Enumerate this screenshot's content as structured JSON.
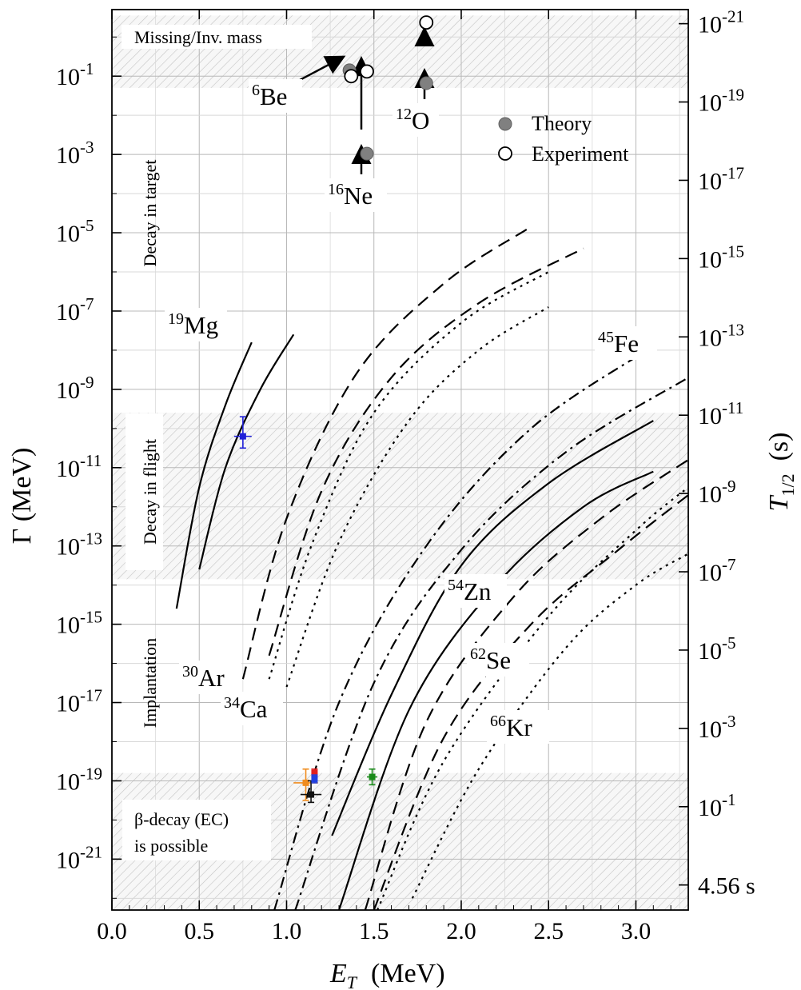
{
  "chart_data": {
    "type": "line",
    "xlabel": "E_T  (MeV)",
    "xlabel_main": "E",
    "xlabel_sub": "T",
    "xlabel_unit": "(MeV)",
    "ylabel": "Γ (MeV)",
    "y2label": "T_1/2  (s)",
    "y2label_main": "T",
    "y2label_sub": "1/2",
    "y2label_unit": "(s)",
    "xlim": [
      0.0,
      3.3
    ],
    "ylim_log10": [
      -22.3,
      0.7
    ],
    "yscale": "log",
    "grid": true,
    "x_ticks": [
      {
        "v": 0.0,
        "label": "0.0"
      },
      {
        "v": 0.5,
        "label": "0.5"
      },
      {
        "v": 1.0,
        "label": "1.0"
      },
      {
        "v": 1.5,
        "label": "1.5"
      },
      {
        "v": 2.0,
        "label": "2.0"
      },
      {
        "v": 2.5,
        "label": "2.5"
      },
      {
        "v": 3.0,
        "label": "3.0"
      }
    ],
    "y_ticks": [
      {
        "exp": -1,
        "base": "10",
        "sup": "-1"
      },
      {
        "exp": -3,
        "base": "10",
        "sup": "-3"
      },
      {
        "exp": -5,
        "base": "10",
        "sup": "-5"
      },
      {
        "exp": -7,
        "base": "10",
        "sup": "-7"
      },
      {
        "exp": -9,
        "base": "10",
        "sup": "-9"
      },
      {
        "exp": -11,
        "base": "10",
        "sup": "-11"
      },
      {
        "exp": -13,
        "base": "10",
        "sup": "-13"
      },
      {
        "exp": -15,
        "base": "10",
        "sup": "-15"
      },
      {
        "exp": -17,
        "base": "10",
        "sup": "-17"
      },
      {
        "exp": -19,
        "base": "10",
        "sup": "-19"
      },
      {
        "exp": -21,
        "base": "10",
        "sup": "-21"
      }
    ],
    "y2_ticks": [
      {
        "pos": 0.34,
        "base": "10",
        "sup": "-21"
      },
      {
        "pos": -1.66,
        "base": "10",
        "sup": "-19"
      },
      {
        "pos": -3.66,
        "base": "10",
        "sup": "-17"
      },
      {
        "pos": -5.66,
        "base": "10",
        "sup": "-15"
      },
      {
        "pos": -7.66,
        "base": "10",
        "sup": "-13"
      },
      {
        "pos": -9.66,
        "base": "10",
        "sup": "-11"
      },
      {
        "pos": -11.66,
        "base": "10",
        "sup": "-9"
      },
      {
        "pos": -13.66,
        "base": "10",
        "sup": "-7"
      },
      {
        "pos": -15.66,
        "base": "10",
        "sup": "-5"
      },
      {
        "pos": -17.66,
        "base": "10",
        "sup": "-3"
      },
      {
        "pos": -19.66,
        "base": "10",
        "sup": "-1"
      },
      {
        "pos": -21.66,
        "base": "4.56 s",
        "sup": ""
      }
    ],
    "regions": [
      {
        "name": "missing-inv-mass",
        "ylog": [
          -1.3,
          0.55
        ],
        "label": "Missing/Inv. mass"
      },
      {
        "name": "decay-in-flight",
        "ylog": [
          -13.85,
          -9.6
        ],
        "label": "Decay in flight"
      },
      {
        "name": "beta-decay-ec",
        "ylog": [
          -22.3,
          -18.8
        ],
        "label_lines": [
          "β-decay (EC)",
          "is possible"
        ]
      }
    ],
    "region_side_labels": [
      {
        "name": "decay-in-target",
        "label": "Decay in target",
        "y_center_log": -4.5
      },
      {
        "name": "implantation",
        "label": "Implantation",
        "y_center_log": -16.5
      }
    ],
    "series": [
      {
        "id": "19Mg-a",
        "style": "solid",
        "points": [
          [
            0.37,
            -14.6
          ],
          [
            0.5,
            -11.5
          ],
          [
            0.65,
            -9.4
          ],
          [
            0.8,
            -7.8
          ]
        ]
      },
      {
        "id": "19Mg-b",
        "style": "solid",
        "points": [
          [
            0.5,
            -13.6
          ],
          [
            0.65,
            -11.0
          ],
          [
            0.85,
            -9.0
          ],
          [
            1.04,
            -7.6
          ]
        ]
      },
      {
        "id": "30Ar-a",
        "style": "dash",
        "points": [
          [
            0.75,
            -16.4
          ],
          [
            1.0,
            -12.3
          ],
          [
            1.4,
            -8.6
          ],
          [
            1.9,
            -6.3
          ],
          [
            2.38,
            -4.9
          ]
        ]
      },
      {
        "id": "30Ar-b",
        "style": "dash",
        "points": [
          [
            0.9,
            -15.8
          ],
          [
            1.2,
            -11.6
          ],
          [
            1.6,
            -8.7
          ],
          [
            2.1,
            -6.8
          ],
          [
            2.7,
            -5.4
          ]
        ]
      },
      {
        "id": "34Ca-a",
        "style": "dot",
        "points": [
          [
            0.9,
            -16.4
          ],
          [
            1.15,
            -12.9
          ],
          [
            1.5,
            -9.6
          ],
          [
            2.0,
            -7.3
          ],
          [
            2.5,
            -6.0
          ]
        ]
      },
      {
        "id": "34Ca-b",
        "style": "dot",
        "points": [
          [
            1.0,
            -16.6
          ],
          [
            1.3,
            -12.9
          ],
          [
            1.7,
            -9.8
          ],
          [
            2.1,
            -8.0
          ],
          [
            2.5,
            -6.9
          ]
        ]
      },
      {
        "id": "45Fe-a",
        "style": "dashdot",
        "points": [
          [
            0.93,
            -22.3
          ],
          [
            1.3,
            -17.0
          ],
          [
            1.8,
            -13.0
          ],
          [
            2.4,
            -10.0
          ],
          [
            3.1,
            -7.9
          ]
        ]
      },
      {
        "id": "45Fe-b",
        "style": "dashdot",
        "points": [
          [
            1.05,
            -22.3
          ],
          [
            1.5,
            -16.5
          ],
          [
            2.0,
            -13.1
          ],
          [
            2.6,
            -10.6
          ],
          [
            3.3,
            -8.7
          ]
        ]
      },
      {
        "id": "54Zn-a",
        "style": "solid",
        "points": [
          [
            1.26,
            -20.4
          ],
          [
            1.6,
            -16.8
          ],
          [
            2.0,
            -13.5
          ],
          [
            2.5,
            -11.4
          ],
          [
            3.1,
            -9.8
          ]
        ]
      },
      {
        "id": "54Zn-b",
        "style": "solid",
        "points": [
          [
            1.3,
            -22.3
          ],
          [
            1.7,
            -17.2
          ],
          [
            2.2,
            -14.0
          ],
          [
            2.7,
            -12.0
          ],
          [
            3.1,
            -11.1
          ]
        ]
      },
      {
        "id": "62Se-a",
        "style": "dash",
        "points": [
          [
            1.45,
            -22.3
          ],
          [
            1.8,
            -17.5
          ],
          [
            2.3,
            -14.3
          ],
          [
            2.8,
            -12.3
          ],
          [
            3.3,
            -10.8
          ]
        ]
      },
      {
        "id": "62Se-b",
        "style": "dash",
        "points": [
          [
            1.5,
            -22.3
          ],
          [
            1.9,
            -17.9
          ],
          [
            2.4,
            -15.0
          ],
          [
            2.9,
            -13.1
          ],
          [
            3.3,
            -11.7
          ]
        ]
      },
      {
        "id": "66Kr-a",
        "style": "dot",
        "points": [
          [
            1.52,
            -22.3
          ],
          [
            1.9,
            -18.5
          ],
          [
            2.5,
            -14.8
          ],
          [
            3.0,
            -12.6
          ],
          [
            3.3,
            -11.5
          ]
        ]
      },
      {
        "id": "66Kr-b",
        "style": "dot",
        "points": [
          [
            1.72,
            -22.0
          ],
          [
            2.1,
            -18.7
          ],
          [
            2.6,
            -15.6
          ],
          [
            3.0,
            -14.0
          ],
          [
            3.3,
            -13.2
          ]
        ]
      }
    ],
    "theory_points": [
      {
        "name": "6Be",
        "x": 1.36,
        "ylog": -0.85
      },
      {
        "name": "16Ne",
        "x": 1.46,
        "ylog": -2.98
      },
      {
        "name": "12O",
        "x": 1.8,
        "ylog": -1.18
      }
    ],
    "experiment_points": [
      {
        "name": "6Be",
        "x": 1.37,
        "ylog": -1.0
      },
      {
        "name": "16Ne",
        "x": 1.46,
        "ylog": -0.88
      },
      {
        "name": "12O",
        "x": 1.8,
        "ylog": 0.37
      }
    ],
    "measured_points": [
      {
        "name": "19Mg-exp",
        "color": "#1f1fd8",
        "x": 0.75,
        "ylog": -10.2,
        "xerr": 0.05,
        "yerr_log": [
          -10.5,
          -9.7
        ]
      },
      {
        "name": "pt-orange",
        "color": "#f08c1e",
        "x": 1.11,
        "ylog": -19.05,
        "xerr": 0.07,
        "yerr_log": [
          -19.5,
          -18.7
        ]
      },
      {
        "name": "pt-black",
        "color": "#111111",
        "x": 1.14,
        "ylog": -19.35,
        "xerr": 0.06,
        "yerr_log": [
          -19.55,
          -19.0
        ]
      },
      {
        "name": "pt-red",
        "color": "#e02020",
        "x": 1.16,
        "ylog": -18.8,
        "xerr": 0.01,
        "yerr_log": [
          -18.9,
          -18.7
        ]
      },
      {
        "name": "pt-blue",
        "color": "#2040e0",
        "x": 1.16,
        "ylog": -18.95,
        "xerr": 0.01,
        "yerr_log": [
          -19.05,
          -18.85
        ]
      },
      {
        "name": "pt-green",
        "color": "#1a8a1a",
        "x": 1.49,
        "ylog": -18.9,
        "xerr": 0.03,
        "yerr_log": [
          -19.1,
          -18.7
        ]
      }
    ],
    "isotope_labels": [
      {
        "name": "6Be",
        "sup": "6",
        "text": "Be"
      },
      {
        "name": "16Ne",
        "sup": "16",
        "text": "Ne"
      },
      {
        "name": "12O",
        "sup": "12",
        "text": "O"
      },
      {
        "name": "19Mg",
        "sup": "19",
        "text": "Mg"
      },
      {
        "name": "45Fe",
        "sup": "45",
        "text": "Fe"
      },
      {
        "name": "54Zn",
        "sup": "54",
        "text": "Zn"
      },
      {
        "name": "30Ar",
        "sup": "30",
        "text": "Ar"
      },
      {
        "name": "34Ca",
        "sup": "34",
        "text": "Ca"
      },
      {
        "name": "62Se",
        "sup": "62",
        "text": "Se"
      },
      {
        "name": "66Kr",
        "sup": "66",
        "text": "Kr"
      }
    ],
    "legend": {
      "placement": "top-right",
      "entries": [
        {
          "label": "Theory",
          "marker": "filled-circle",
          "color": "#808080"
        },
        {
          "label": "Experiment",
          "marker": "open-circle",
          "color": "#000000"
        }
      ]
    }
  }
}
